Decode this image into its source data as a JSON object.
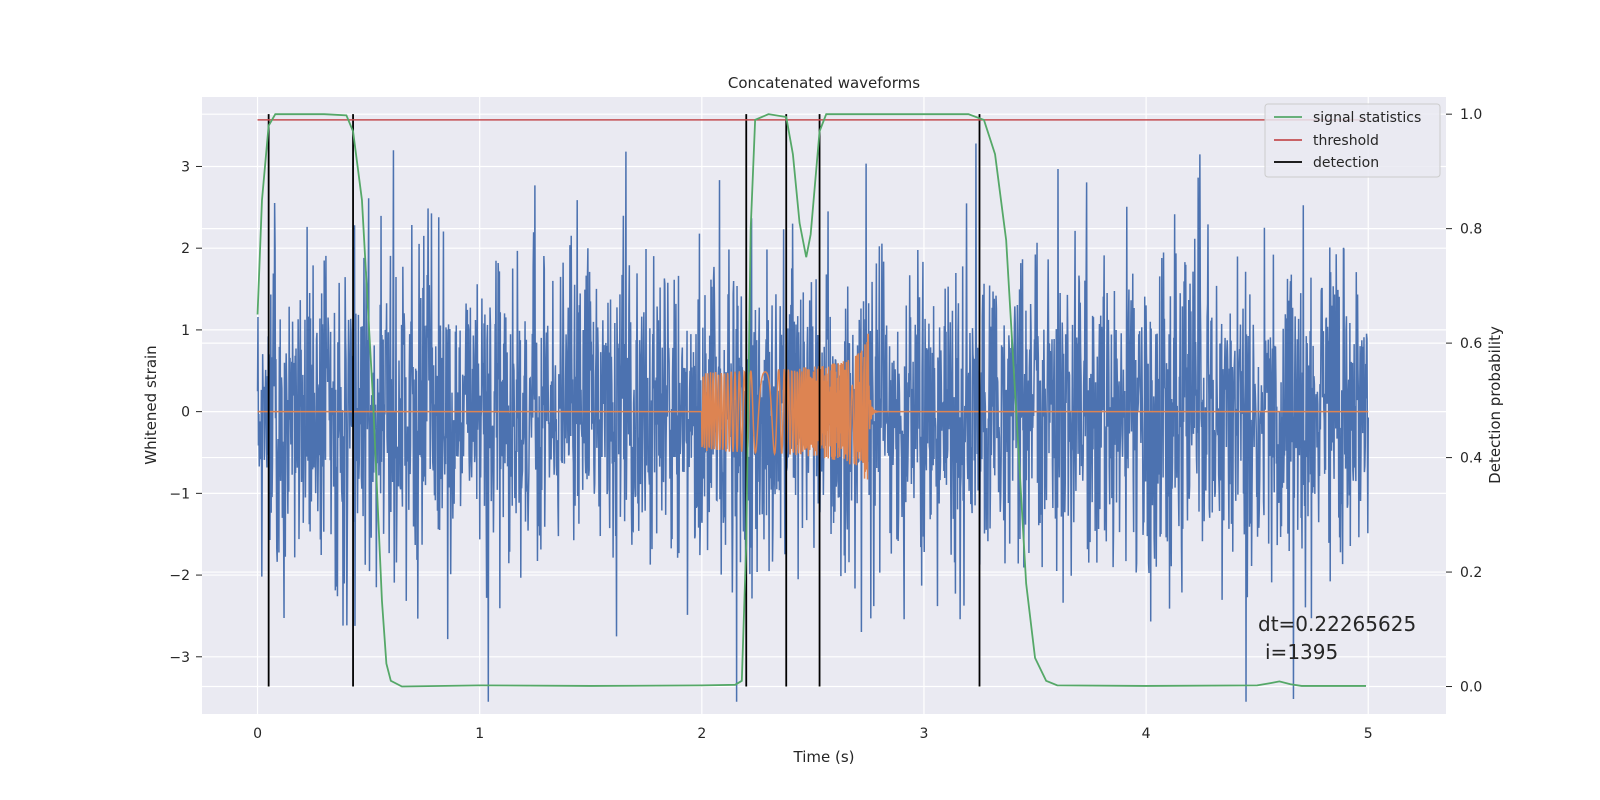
{
  "chart_data": {
    "type": "line",
    "title": "Concatenated waveforms",
    "xlabel": "Time (s)",
    "ylabel_left": "Whitened strain",
    "ylabel_right": "Detection probability",
    "xlim": [
      -0.25,
      5.35
    ],
    "ylim_left": [
      -3.7,
      3.85
    ],
    "ylim_right": [
      -0.048,
      1.03
    ],
    "x_ticks": [
      0,
      1,
      2,
      3,
      4,
      5
    ],
    "y_ticks_left": [
      -3,
      -2,
      -1,
      0,
      1,
      2,
      3
    ],
    "y_tick_labels_left": [
      "−3",
      "−2",
      "−1",
      "0",
      "1",
      "2",
      "3"
    ],
    "y_ticks_right": [
      0.0,
      0.2,
      0.4,
      0.6,
      0.8,
      1.0
    ],
    "y_tick_labels_right": [
      "0.0",
      "0.2",
      "0.4",
      "0.6",
      "0.8",
      "1.0"
    ],
    "grid": true,
    "legend_position": "top-right",
    "series": [
      {
        "name": "whitened-strain-noise",
        "axis": "left",
        "color": "#4c72b0",
        "kind": "noise",
        "x_range": [
          0,
          5
        ],
        "amplitude_typical": 1.7,
        "amplitude_peak": 3.5
      },
      {
        "name": "injected-chirp",
        "axis": "left",
        "color": "#dd8452",
        "kind": "chirp",
        "x_range": [
          0,
          5
        ],
        "chirp_start": 2.0,
        "chirp_merger": 2.75,
        "amplitude_start": 0.25,
        "amplitude_peak": 1.1
      },
      {
        "name": "signal statistics",
        "axis": "right",
        "color": "#55a868",
        "points": [
          [
            0.0,
            0.65
          ],
          [
            0.02,
            0.85
          ],
          [
            0.05,
            0.98
          ],
          [
            0.08,
            1.0
          ],
          [
            0.3,
            1.0
          ],
          [
            0.4,
            0.998
          ],
          [
            0.43,
            0.97
          ],
          [
            0.47,
            0.85
          ],
          [
            0.52,
            0.5
          ],
          [
            0.56,
            0.15
          ],
          [
            0.58,
            0.04
          ],
          [
            0.6,
            0.01
          ],
          [
            0.65,
            0.0
          ],
          [
            1.0,
            0.002
          ],
          [
            1.5,
            0.001
          ],
          [
            2.0,
            0.002
          ],
          [
            2.15,
            0.003
          ],
          [
            2.18,
            0.01
          ],
          [
            2.2,
            0.25
          ],
          [
            2.22,
            0.8
          ],
          [
            2.24,
            0.99
          ],
          [
            2.3,
            1.0
          ],
          [
            2.38,
            0.995
          ],
          [
            2.41,
            0.93
          ],
          [
            2.44,
            0.81
          ],
          [
            2.47,
            0.75
          ],
          [
            2.49,
            0.79
          ],
          [
            2.51,
            0.88
          ],
          [
            2.53,
            0.97
          ],
          [
            2.56,
            1.0
          ],
          [
            3.0,
            1.0
          ],
          [
            3.2,
            1.0
          ],
          [
            3.27,
            0.99
          ],
          [
            3.32,
            0.93
          ],
          [
            3.37,
            0.78
          ],
          [
            3.42,
            0.45
          ],
          [
            3.46,
            0.18
          ],
          [
            3.5,
            0.05
          ],
          [
            3.55,
            0.01
          ],
          [
            3.6,
            0.002
          ],
          [
            4.0,
            0.001
          ],
          [
            4.5,
            0.002
          ],
          [
            4.56,
            0.006
          ],
          [
            4.6,
            0.009
          ],
          [
            4.65,
            0.004
          ],
          [
            4.7,
            0.001
          ],
          [
            4.99,
            0.001
          ]
        ]
      },
      {
        "name": "threshold",
        "axis": "right",
        "color": "#c44e52",
        "value": 0.99,
        "x_range": [
          0,
          4.99
        ]
      },
      {
        "name": "detection",
        "axis": "right",
        "color": "#000000",
        "x": [
          0.05,
          0.43,
          2.2,
          2.38,
          2.53,
          3.25
        ],
        "y_range": [
          0.0,
          1.0
        ]
      }
    ],
    "legend": [
      "signal statistics",
      "threshold",
      "detection"
    ],
    "annotation": {
      "lines": [
        "dt=0.22265625",
        "i=1395"
      ]
    }
  },
  "colors": {
    "axes_bg": "#eaeaf2",
    "grid": "#ffffff",
    "noise": "#4c72b0",
    "chirp": "#dd8452",
    "stat": "#55a868",
    "threshold": "#c44e52",
    "detection": "#000000"
  }
}
